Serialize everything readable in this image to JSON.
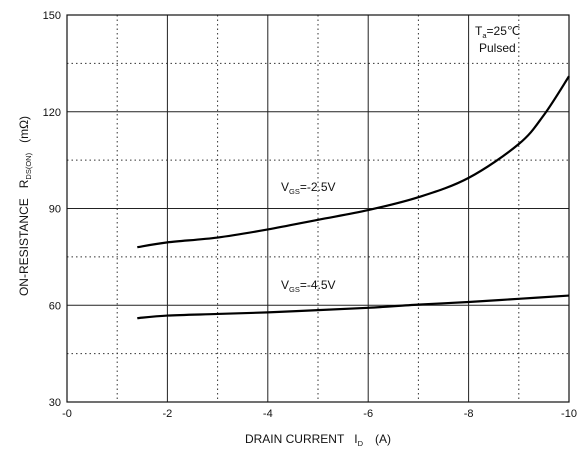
{
  "chart_data": {
    "type": "line",
    "xlabel": "DRAIN CURRENT",
    "xlabel_symbol": "I",
    "xlabel_symbol_sub": "D",
    "xlabel_unit": "(A)",
    "ylabel": "ON-RESISTANCE",
    "ylabel_symbol": "R",
    "ylabel_symbol_sub": "DS(ON)",
    "ylabel_unit": "(mΩ)",
    "xlim": [
      0,
      -10
    ],
    "ylim": [
      30,
      150
    ],
    "x_ticks": [
      0,
      -2,
      -4,
      -6,
      -8,
      -10
    ],
    "x_tick_labels": [
      "-0",
      "-2",
      "-4",
      "-6",
      "-8",
      "-10"
    ],
    "y_ticks": [
      30,
      60,
      90,
      120,
      150
    ],
    "y_tick_labels": [
      "30",
      "60",
      "90",
      "120",
      "150"
    ],
    "grid": true,
    "conditions": {
      "temp_symbol": "T",
      "temp_sub": "a",
      "temp_value": "=25℃",
      "mode": "Pulsed"
    },
    "series": [
      {
        "name": "VGS=-2.5V",
        "label_main": "V",
        "label_sub": "GS",
        "label_value": "=-2.5V",
        "x": [
          -1.4,
          -2,
          -3,
          -4,
          -5,
          -6,
          -7,
          -8,
          -9,
          -9.5,
          -10
        ],
        "y": [
          78,
          79.5,
          81,
          83.5,
          86.5,
          89.5,
          93.5,
          99.5,
          110,
          119,
          131
        ]
      },
      {
        "name": "VGS=-4.5V",
        "label_main": "V",
        "label_sub": "GS",
        "label_value": "=-4.5V",
        "x": [
          -1.4,
          -2,
          -3,
          -4,
          -5,
          -6,
          -7,
          -8,
          -9,
          -10
        ],
        "y": [
          56,
          56.8,
          57.3,
          57.8,
          58.5,
          59.2,
          60.2,
          61,
          62,
          63
        ]
      }
    ]
  }
}
